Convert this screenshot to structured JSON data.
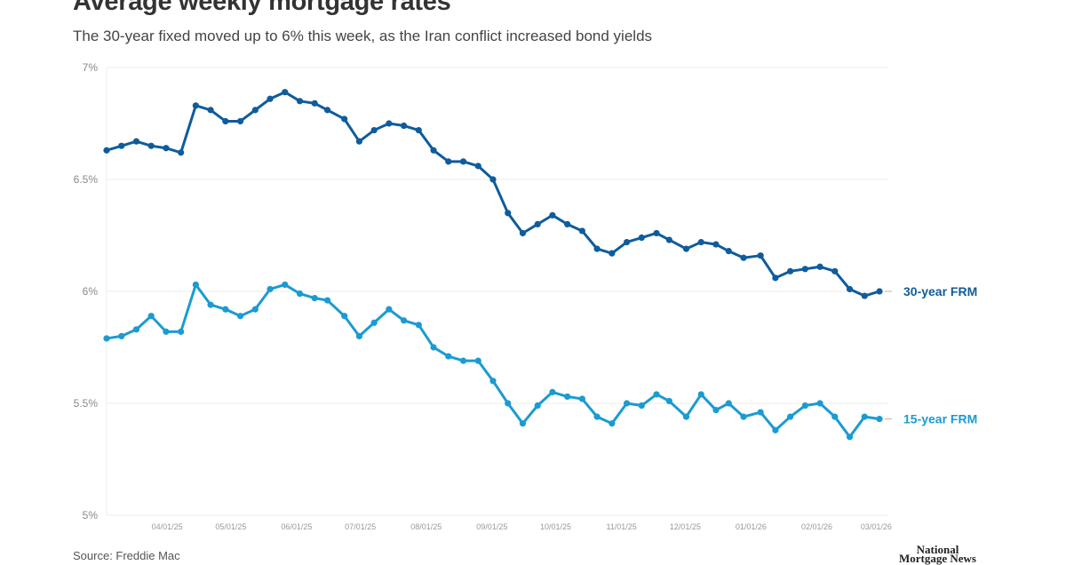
{
  "title": "Average weekly mortgage rates",
  "subtitle": "The 30-year fixed moved up to 6% this week, as the Iran conflict increased bond yields",
  "source": "Source: Freddie Mac",
  "logo_text": "National Mortgage News",
  "chart_data": {
    "type": "line",
    "title": "Average weekly mortgage rates",
    "xlabel": "",
    "ylabel": "",
    "ylim": [
      5,
      7
    ],
    "y_ticks": [
      "5%",
      "5.5%",
      "6%",
      "6.5%",
      "7%"
    ],
    "y_tick_values": [
      5,
      5.5,
      6,
      6.5,
      7
    ],
    "x_ticks": [
      "04/01/25",
      "05/01/25",
      "06/01/25",
      "07/01/25",
      "08/01/25",
      "09/01/25",
      "10/01/25",
      "11/01/25",
      "12/01/25",
      "01/01/26",
      "02/01/26",
      "03/01/26"
    ],
    "grid": "horizontal",
    "legend": "end-of-line labels",
    "x": [
      "2025-03-06",
      "2025-03-13",
      "2025-03-20",
      "2025-03-27",
      "2025-04-03",
      "2025-04-10",
      "2025-04-17",
      "2025-04-24",
      "2025-05-01",
      "2025-05-08",
      "2025-05-15",
      "2025-05-22",
      "2025-05-29",
      "2025-06-05",
      "2025-06-12",
      "2025-06-18",
      "2025-06-26",
      "2025-07-03",
      "2025-07-10",
      "2025-07-17",
      "2025-07-24",
      "2025-07-31",
      "2025-08-07",
      "2025-08-14",
      "2025-08-21",
      "2025-08-28",
      "2025-09-04",
      "2025-09-11",
      "2025-09-18",
      "2025-09-25",
      "2025-10-02",
      "2025-10-09",
      "2025-10-16",
      "2025-10-23",
      "2025-10-30",
      "2025-11-06",
      "2025-11-13",
      "2025-11-20",
      "2025-11-26",
      "2025-12-04",
      "2025-12-11",
      "2025-12-18",
      "2025-12-24",
      "2025-12-31",
      "2026-01-08",
      "2026-01-15",
      "2026-01-22",
      "2026-01-29",
      "2026-02-05",
      "2026-02-12",
      "2026-02-19",
      "2026-02-26",
      "2026-03-05"
    ],
    "series": [
      {
        "name": "30-year FRM",
        "color": "#0f5c9c",
        "values": [
          6.63,
          6.65,
          6.67,
          6.65,
          6.64,
          6.62,
          6.83,
          6.81,
          6.76,
          6.76,
          6.81,
          6.86,
          6.89,
          6.85,
          6.84,
          6.81,
          6.77,
          6.67,
          6.72,
          6.75,
          6.74,
          6.72,
          6.63,
          6.58,
          6.58,
          6.56,
          6.5,
          6.35,
          6.26,
          6.3,
          6.34,
          6.3,
          6.27,
          6.19,
          6.17,
          6.22,
          6.24,
          6.26,
          6.23,
          6.19,
          6.22,
          6.21,
          6.18,
          6.15,
          6.16,
          6.06,
          6.09,
          6.1,
          6.11,
          6.09,
          6.01,
          5.98,
          6.0
        ]
      },
      {
        "name": "15-year FRM",
        "color": "#1b9bd1",
        "values": [
          5.79,
          5.8,
          5.83,
          5.89,
          5.82,
          5.82,
          6.03,
          5.94,
          5.92,
          5.89,
          5.92,
          6.01,
          6.03,
          5.99,
          5.97,
          5.96,
          5.89,
          5.8,
          5.86,
          5.92,
          5.87,
          5.85,
          5.75,
          5.71,
          5.69,
          5.69,
          5.6,
          5.5,
          5.41,
          5.49,
          5.55,
          5.53,
          5.52,
          5.44,
          5.41,
          5.5,
          5.49,
          5.54,
          5.51,
          5.44,
          5.54,
          5.47,
          5.5,
          5.44,
          5.46,
          5.38,
          5.44,
          5.49,
          5.5,
          5.44,
          5.35,
          5.44,
          5.43
        ]
      }
    ]
  }
}
